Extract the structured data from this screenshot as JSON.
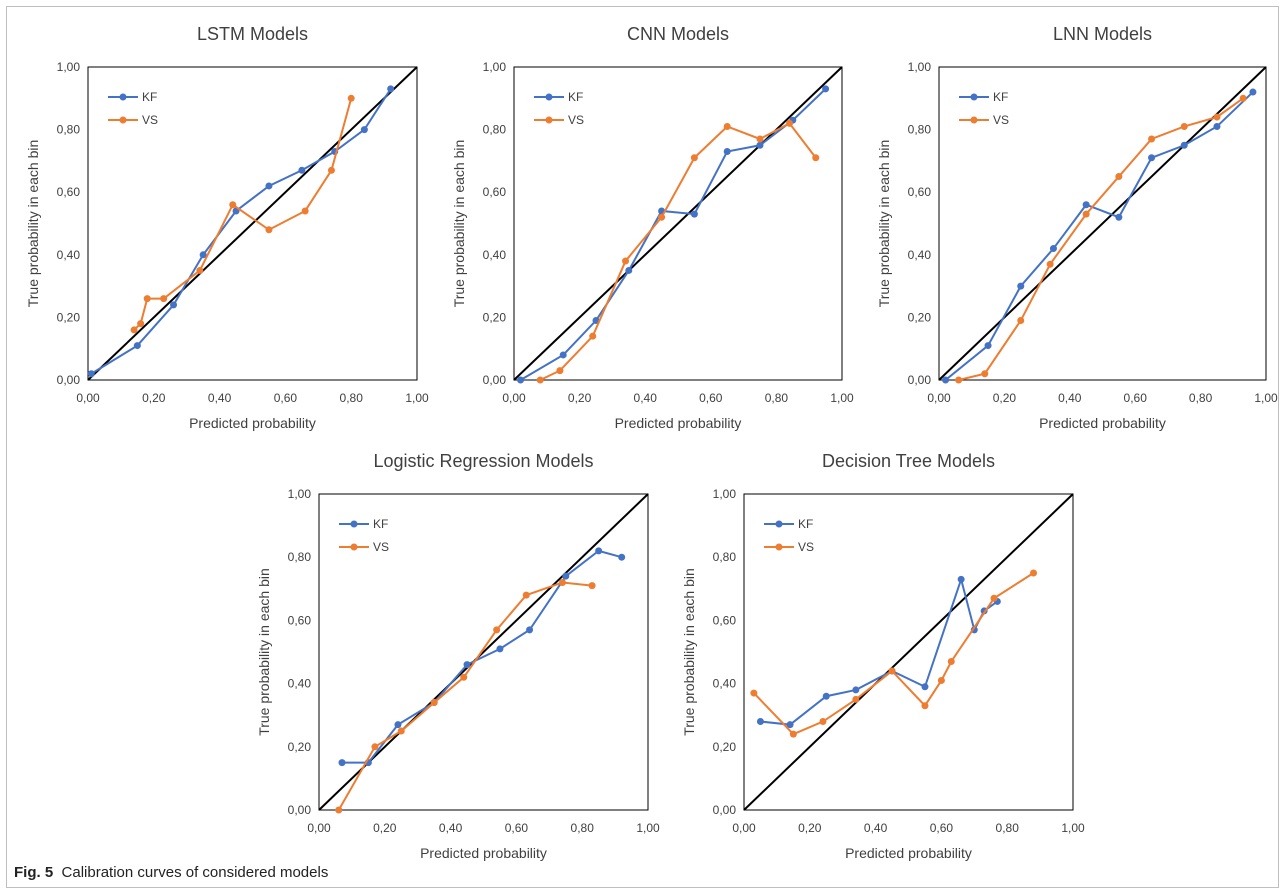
{
  "caption": {
    "label": "Fig. 5",
    "text": "Calibration curves of considered models"
  },
  "colors": {
    "KF": "#4472C4",
    "VS": "#ED7D31",
    "diagonal": "#000000"
  },
  "chart_data": [
    {
      "type": "line",
      "title": "LSTM Models",
      "xlabel": "Predicted probability",
      "ylabel": "True probability in each bin",
      "xlim": [
        0,
        1
      ],
      "ylim": [
        0,
        1
      ],
      "xticks": [
        "0,00",
        "0,20",
        "0,40",
        "0,60",
        "0,80",
        "1,00"
      ],
      "yticks": [
        "0,00",
        "0,20",
        "0,40",
        "0,60",
        "0,80",
        "1,00"
      ],
      "legend": "top-left",
      "diagonal": true,
      "series": [
        {
          "name": "KF",
          "x": [
            0.01,
            0.15,
            0.26,
            0.35,
            0.45,
            0.55,
            0.65,
            0.75,
            0.84,
            0.92
          ],
          "y": [
            0.02,
            0.11,
            0.24,
            0.4,
            0.54,
            0.62,
            0.67,
            0.73,
            0.8,
            0.93
          ]
        },
        {
          "name": "VS",
          "x": [
            0.14,
            0.16,
            0.18,
            0.23,
            0.34,
            0.44,
            0.55,
            0.66,
            0.74,
            0.8
          ],
          "y": [
            0.16,
            0.18,
            0.26,
            0.26,
            0.35,
            0.56,
            0.48,
            0.54,
            0.67,
            0.9
          ]
        }
      ]
    },
    {
      "type": "line",
      "title": "CNN Models",
      "xlabel": "Predicted probability",
      "ylabel": "True probability in each bin",
      "xlim": [
        0,
        1
      ],
      "ylim": [
        0,
        1
      ],
      "xticks": [
        "0,00",
        "0,20",
        "0,40",
        "0,60",
        "0,80",
        "1,00"
      ],
      "yticks": [
        "0,00",
        "0,20",
        "0,40",
        "0,60",
        "0,80",
        "1,00"
      ],
      "legend": "top-left",
      "diagonal": true,
      "series": [
        {
          "name": "KF",
          "x": [
            0.02,
            0.15,
            0.25,
            0.35,
            0.45,
            0.55,
            0.65,
            0.75,
            0.85,
            0.95
          ],
          "y": [
            0.0,
            0.08,
            0.19,
            0.35,
            0.54,
            0.53,
            0.73,
            0.75,
            0.83,
            0.93
          ]
        },
        {
          "name": "VS",
          "x": [
            0.08,
            0.14,
            0.24,
            0.34,
            0.45,
            0.55,
            0.65,
            0.75,
            0.84,
            0.92
          ],
          "y": [
            0.0,
            0.03,
            0.14,
            0.38,
            0.52,
            0.71,
            0.81,
            0.77,
            0.82,
            0.71
          ]
        }
      ]
    },
    {
      "type": "line",
      "title": "LNN Models",
      "xlabel": "Predicted probability",
      "ylabel": "True probability in each bin",
      "xlim": [
        0,
        1
      ],
      "ylim": [
        0,
        1
      ],
      "xticks": [
        "0,00",
        "0,20",
        "0,40",
        "0,60",
        "0,80",
        "1,00"
      ],
      "yticks": [
        "0,00",
        "0,20",
        "0,40",
        "0,60",
        "0,80",
        "1,00"
      ],
      "legend": "top-left",
      "diagonal": true,
      "series": [
        {
          "name": "KF",
          "x": [
            0.02,
            0.15,
            0.25,
            0.35,
            0.45,
            0.55,
            0.65,
            0.75,
            0.85,
            0.96
          ],
          "y": [
            0.0,
            0.11,
            0.3,
            0.42,
            0.56,
            0.52,
            0.71,
            0.75,
            0.81,
            0.92
          ]
        },
        {
          "name": "VS",
          "x": [
            0.06,
            0.14,
            0.25,
            0.34,
            0.45,
            0.55,
            0.65,
            0.75,
            0.85,
            0.93
          ],
          "y": [
            0.0,
            0.02,
            0.19,
            0.37,
            0.53,
            0.65,
            0.77,
            0.81,
            0.84,
            0.9
          ]
        }
      ]
    },
    {
      "type": "line",
      "title": "Logistic Regression Models",
      "xlabel": "Predicted probability",
      "ylabel": "True probability in each bin",
      "xlim": [
        0,
        1
      ],
      "ylim": [
        0,
        1
      ],
      "xticks": [
        "0,00",
        "0,20",
        "0,40",
        "0,60",
        "0,80",
        "1,00"
      ],
      "yticks": [
        "0,00",
        "0,20",
        "0,40",
        "0,60",
        "0,80",
        "1,00"
      ],
      "legend": "top-left",
      "diagonal": true,
      "series": [
        {
          "name": "KF",
          "x": [
            0.07,
            0.15,
            0.24,
            0.35,
            0.45,
            0.55,
            0.64,
            0.75,
            0.85,
            0.92
          ],
          "y": [
            0.15,
            0.15,
            0.27,
            0.34,
            0.46,
            0.51,
            0.57,
            0.74,
            0.82,
            0.8
          ]
        },
        {
          "name": "VS",
          "x": [
            0.06,
            0.17,
            0.25,
            0.35,
            0.44,
            0.54,
            0.63,
            0.74,
            0.83
          ],
          "y": [
            0.0,
            0.2,
            0.25,
            0.34,
            0.42,
            0.57,
            0.68,
            0.72,
            0.71
          ]
        }
      ]
    },
    {
      "type": "line",
      "title": "Decision Tree Models",
      "xlabel": "Predicted probability",
      "ylabel": "True probability in each bin",
      "xlim": [
        0,
        1
      ],
      "ylim": [
        0,
        1
      ],
      "xticks": [
        "0,00",
        "0,20",
        "0,40",
        "0,60",
        "0,80",
        "1,00"
      ],
      "yticks": [
        "0,00",
        "0,20",
        "0,40",
        "0,60",
        "0,80",
        "1,00"
      ],
      "legend": "top-left",
      "diagonal": true,
      "series": [
        {
          "name": "KF",
          "x": [
            0.05,
            0.14,
            0.25,
            0.34,
            0.45,
            0.55,
            0.66,
            0.7,
            0.73,
            0.77
          ],
          "y": [
            0.28,
            0.27,
            0.36,
            0.38,
            0.44,
            0.39,
            0.73,
            0.57,
            0.63,
            0.66
          ]
        },
        {
          "name": "VS",
          "x": [
            0.03,
            0.15,
            0.24,
            0.34,
            0.45,
            0.55,
            0.6,
            0.63,
            0.76,
            0.88
          ],
          "y": [
            0.37,
            0.24,
            0.28,
            0.35,
            0.44,
            0.33,
            0.41,
            0.47,
            0.67,
            0.75
          ]
        }
      ]
    }
  ]
}
